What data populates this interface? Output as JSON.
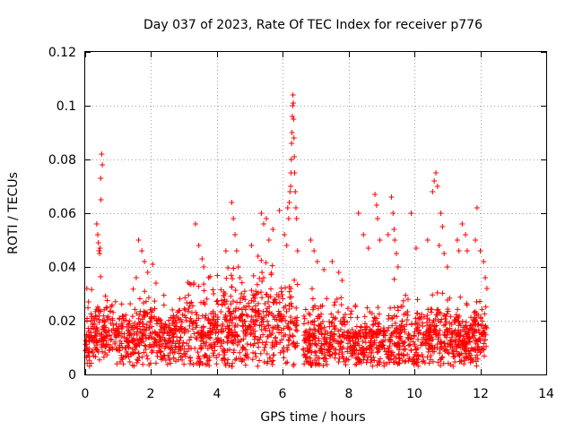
{
  "chart_data": {
    "type": "scatter",
    "title": "Day 037 of 2023, Rate Of TEC Index for receiver p776",
    "xlabel": "GPS time / hours",
    "ylabel": "ROTI / TECUs",
    "xlim": [
      0,
      14
    ],
    "ylim": [
      0,
      0.12
    ],
    "xticks": [
      "0",
      "2",
      "4",
      "6",
      "8",
      "10",
      "12",
      "14"
    ],
    "yticks": [
      "0",
      "0.02",
      "0.04",
      "0.06",
      "0.08",
      "0.1",
      "0.12"
    ],
    "grid": true,
    "marker": "plus",
    "color": "#ff0000",
    "series": [
      {
        "name": "ROTI",
        "envelope": [
          {
            "x": 0.0,
            "base": 0.012,
            "spread": 0.008
          },
          {
            "x": 0.1,
            "base": 0.013,
            "spread": 0.012
          },
          {
            "x": 0.3,
            "base": 0.014,
            "spread": 0.01
          },
          {
            "x": 0.45,
            "base": 0.015,
            "spread": 0.012
          },
          {
            "x": 0.6,
            "base": 0.014,
            "spread": 0.01
          },
          {
            "x": 1.0,
            "base": 0.014,
            "spread": 0.01
          },
          {
            "x": 1.5,
            "base": 0.014,
            "spread": 0.012
          },
          {
            "x": 1.8,
            "base": 0.016,
            "spread": 0.014
          },
          {
            "x": 2.2,
            "base": 0.013,
            "spread": 0.01
          },
          {
            "x": 2.8,
            "base": 0.013,
            "spread": 0.01
          },
          {
            "x": 3.4,
            "base": 0.014,
            "spread": 0.013
          },
          {
            "x": 3.8,
            "base": 0.014,
            "spread": 0.012
          },
          {
            "x": 4.3,
            "base": 0.016,
            "spread": 0.015
          },
          {
            "x": 4.8,
            "base": 0.017,
            "spread": 0.016
          },
          {
            "x": 5.3,
            "base": 0.017,
            "spread": 0.016
          },
          {
            "x": 5.8,
            "base": 0.017,
            "spread": 0.016
          },
          {
            "x": 6.1,
            "base": 0.015,
            "spread": 0.014
          },
          {
            "x": 6.3,
            "base": 0.018,
            "spread": 0.015
          },
          {
            "x": 6.6,
            "base": 0.013,
            "spread": 0.01
          },
          {
            "x": 6.8,
            "base": 0.012,
            "spread": 0.009
          },
          {
            "x": 7.2,
            "base": 0.014,
            "spread": 0.012
          },
          {
            "x": 7.8,
            "base": 0.012,
            "spread": 0.01
          },
          {
            "x": 8.3,
            "base": 0.011,
            "spread": 0.009
          },
          {
            "x": 8.8,
            "base": 0.012,
            "spread": 0.011
          },
          {
            "x": 9.4,
            "base": 0.012,
            "spread": 0.011
          },
          {
            "x": 10.0,
            "base": 0.013,
            "spread": 0.012
          },
          {
            "x": 10.6,
            "base": 0.014,
            "spread": 0.013
          },
          {
            "x": 11.2,
            "base": 0.013,
            "spread": 0.011
          },
          {
            "x": 11.7,
            "base": 0.012,
            "spread": 0.01
          },
          {
            "x": 12.0,
            "base": 0.014,
            "spread": 0.012
          },
          {
            "x": 12.2,
            "base": 0.014,
            "spread": 0.012
          }
        ],
        "gaps": [
          [
            6.45,
            6.62
          ]
        ],
        "samples": 2200,
        "x": [
          0.05,
          0.1,
          0.35,
          0.38,
          0.4,
          0.42,
          0.44,
          0.45,
          0.47,
          0.48,
          0.5,
          0.52,
          1.55,
          1.62,
          1.72,
          1.8,
          1.9,
          2.05,
          2.15,
          3.3,
          3.35,
          3.45,
          3.55,
          3.6,
          3.75,
          3.9,
          4.25,
          4.45,
          4.5,
          4.55,
          4.6,
          4.65,
          4.7,
          5.05,
          5.25,
          5.35,
          5.42,
          5.5,
          5.58,
          5.7,
          5.9,
          6.05,
          6.12,
          6.15,
          6.18,
          6.2,
          6.22,
          6.24,
          6.25,
          6.26,
          6.27,
          6.28,
          6.29,
          6.3,
          6.31,
          6.32,
          6.33,
          6.34,
          6.35,
          6.36,
          6.38,
          6.4,
          6.42,
          6.45,
          6.85,
          6.95,
          7.05,
          7.25,
          7.5,
          7.7,
          7.8,
          8.3,
          8.45,
          8.6,
          8.8,
          8.85,
          8.88,
          8.95,
          9.2,
          9.3,
          9.35,
          9.38,
          9.4,
          9.45,
          9.5,
          9.9,
          10.05,
          10.4,
          10.55,
          10.6,
          10.65,
          10.7,
          10.75,
          10.8,
          10.85,
          10.9,
          11.0,
          11.3,
          11.35,
          11.45,
          11.55,
          11.6,
          11.85,
          11.9,
          12.0,
          12.1,
          12.15,
          12.2
        ],
        "y": [
          0.032,
          0.027,
          0.056,
          0.052,
          0.049,
          0.046,
          0.045,
          0.047,
          0.073,
          0.065,
          0.082,
          0.078,
          0.036,
          0.05,
          0.046,
          0.042,
          0.038,
          0.041,
          0.034,
          0.034,
          0.056,
          0.048,
          0.043,
          0.04,
          0.036,
          0.03,
          0.03,
          0.064,
          0.058,
          0.052,
          0.046,
          0.04,
          0.036,
          0.048,
          0.044,
          0.06,
          0.056,
          0.058,
          0.05,
          0.054,
          0.061,
          0.052,
          0.048,
          0.062,
          0.058,
          0.064,
          0.068,
          0.07,
          0.075,
          0.08,
          0.086,
          0.09,
          0.096,
          0.1,
          0.104,
          0.101,
          0.095,
          0.088,
          0.081,
          0.075,
          0.068,
          0.062,
          0.058,
          0.046,
          0.05,
          0.046,
          0.042,
          0.039,
          0.042,
          0.038,
          0.035,
          0.06,
          0.052,
          0.047,
          0.067,
          0.063,
          0.058,
          0.05,
          0.052,
          0.066,
          0.06,
          0.054,
          0.05,
          0.045,
          0.04,
          0.06,
          0.047,
          0.05,
          0.068,
          0.072,
          0.075,
          0.07,
          0.048,
          0.06,
          0.055,
          0.045,
          0.04,
          0.05,
          0.046,
          0.056,
          0.052,
          0.046,
          0.05,
          0.062,
          0.046,
          0.042,
          0.036,
          0.032
        ]
      }
    ]
  }
}
